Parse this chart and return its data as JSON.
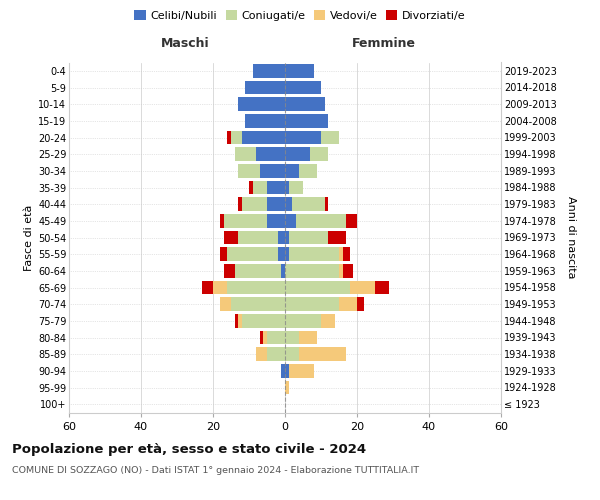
{
  "age_groups": [
    "100+",
    "95-99",
    "90-94",
    "85-89",
    "80-84",
    "75-79",
    "70-74",
    "65-69",
    "60-64",
    "55-59",
    "50-54",
    "45-49",
    "40-44",
    "35-39",
    "30-34",
    "25-29",
    "20-24",
    "15-19",
    "10-14",
    "5-9",
    "0-4"
  ],
  "birth_years": [
    "≤ 1923",
    "1924-1928",
    "1929-1933",
    "1934-1938",
    "1939-1943",
    "1944-1948",
    "1949-1953",
    "1954-1958",
    "1959-1963",
    "1964-1968",
    "1969-1973",
    "1974-1978",
    "1979-1983",
    "1984-1988",
    "1989-1993",
    "1994-1998",
    "1999-2003",
    "2004-2008",
    "2009-2013",
    "2014-2018",
    "2019-2023"
  ],
  "male": {
    "celibi": [
      0,
      0,
      1,
      0,
      0,
      0,
      0,
      0,
      1,
      2,
      2,
      5,
      5,
      5,
      7,
      8,
      12,
      11,
      13,
      11,
      9
    ],
    "coniugati": [
      0,
      0,
      0,
      5,
      5,
      12,
      15,
      16,
      13,
      14,
      11,
      12,
      7,
      4,
      6,
      6,
      3,
      0,
      0,
      0,
      0
    ],
    "vedovi": [
      0,
      0,
      0,
      3,
      1,
      1,
      3,
      4,
      0,
      0,
      0,
      0,
      0,
      0,
      0,
      0,
      0,
      0,
      0,
      0,
      0
    ],
    "divorziati": [
      0,
      0,
      0,
      0,
      1,
      1,
      0,
      3,
      3,
      2,
      4,
      1,
      1,
      1,
      0,
      0,
      1,
      0,
      0,
      0,
      0
    ]
  },
  "female": {
    "nubili": [
      0,
      0,
      1,
      0,
      0,
      0,
      0,
      0,
      0,
      1,
      1,
      3,
      2,
      1,
      4,
      7,
      10,
      12,
      11,
      10,
      8
    ],
    "coniugate": [
      0,
      0,
      0,
      4,
      4,
      10,
      15,
      18,
      15,
      14,
      11,
      14,
      9,
      4,
      5,
      5,
      5,
      0,
      0,
      0,
      0
    ],
    "vedove": [
      0,
      1,
      7,
      13,
      5,
      4,
      5,
      7,
      1,
      1,
      0,
      0,
      0,
      0,
      0,
      0,
      0,
      0,
      0,
      0,
      0
    ],
    "divorziate": [
      0,
      0,
      0,
      0,
      0,
      0,
      2,
      4,
      3,
      2,
      5,
      3,
      1,
      0,
      0,
      0,
      0,
      0,
      0,
      0,
      0
    ]
  },
  "colors": {
    "celibi": "#4472c4",
    "coniugati": "#c5d9a0",
    "vedovi": "#f5c97a",
    "divorziati": "#cc0000"
  },
  "xlim": 60,
  "title_bold": "Popolazione per età, sesso e stato civile - 2024",
  "subtitle": "COMUNE DI SOZZAGO (NO) - Dati ISTAT 1° gennaio 2024 - Elaborazione TUTTITALIA.IT",
  "ylabel_left": "Fasce di età",
  "ylabel_right": "Anni di nascita",
  "label_maschi": "Maschi",
  "label_femmine": "Femmine",
  "legend": [
    "Celibi/Nubili",
    "Coniugati/e",
    "Vedovi/e",
    "Divorziati/e"
  ],
  "bg_color": "#ffffff"
}
